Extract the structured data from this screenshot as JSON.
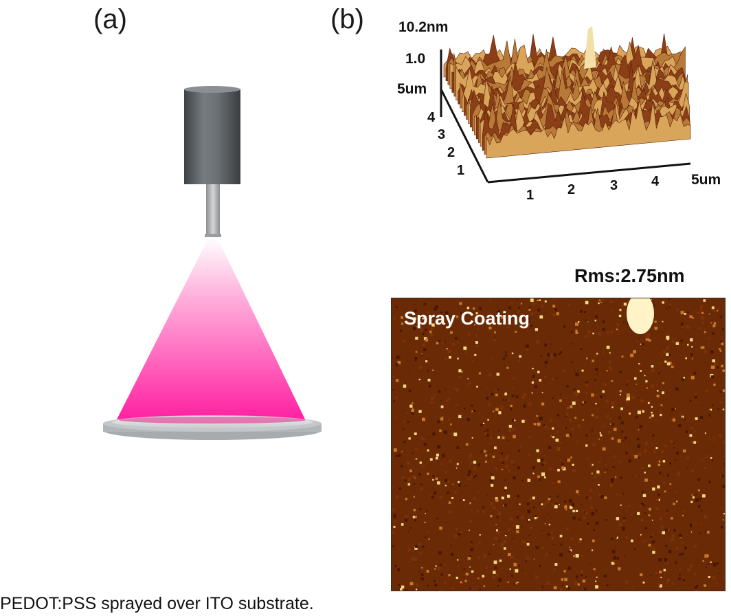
{
  "panels": {
    "a": {
      "label": "(a)"
    },
    "b": {
      "label": "(b)",
      "surface_3d": {
        "z_max_label": "10.2nm",
        "z_mid_label": "1.0",
        "y_axis_max_label": "5um",
        "x_axis_max_label": "5um",
        "y_ticks": [
          "4",
          "3",
          "2",
          "1"
        ],
        "x_ticks": [
          "1",
          "2",
          "3",
          "4"
        ]
      },
      "rms_label": "Rms:2.75nm",
      "map_2d": {
        "label": "Spray Coating"
      }
    }
  },
  "caption": "PEDOT:PSS sprayed over ITO substrate.",
  "colors": {
    "spray_cone": "#ff2aa5",
    "nozzle_body": "#5f6468",
    "substrate": "#b8bcbf",
    "afm_dark": "#5a1a00",
    "afm_bright": "#fff2b0"
  }
}
